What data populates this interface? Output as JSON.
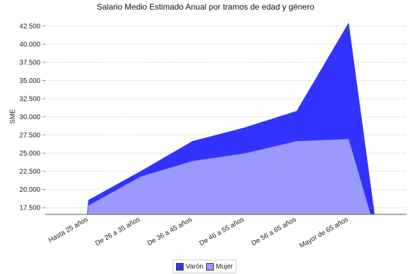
{
  "chart_data": {
    "type": "area",
    "stacked": false,
    "title": "Salario Medio Estimado Anual por tramos de edad y género",
    "xlabel": "",
    "ylabel": "SME",
    "categories": [
      "Hasta 25  años",
      "De 26  a 35  años",
      "De 36  a 45  años",
      "De 46  a 55  años",
      "De 56  a 65  años",
      "Mayor de 65  años"
    ],
    "series": [
      {
        "name": "Varón",
        "color": "#3333ff",
        "values": [
          18540,
          22500,
          26650,
          28530,
          30800,
          42970
        ]
      },
      {
        "name": "Mujer",
        "color": "#9999ff",
        "values": [
          17780,
          21750,
          23900,
          24950,
          26650,
          26930
        ]
      }
    ],
    "ylim": [
      16500,
      43500
    ],
    "yticks": [
      17500,
      20000,
      22500,
      25000,
      27500,
      30000,
      32500,
      35000,
      37500,
      40000,
      42500
    ],
    "ytick_labels": [
      "17.500",
      "20.000",
      "22.500",
      "25.000",
      "27.500",
      "30.000",
      "32.500",
      "35.000",
      "37.500",
      "40.000",
      "42.500"
    ],
    "grid": true,
    "legend_position": "bottom"
  },
  "legend": {
    "items": [
      {
        "label": "Varón",
        "color": "#3333ff"
      },
      {
        "label": "Mujer",
        "color": "#9999ff"
      }
    ]
  }
}
